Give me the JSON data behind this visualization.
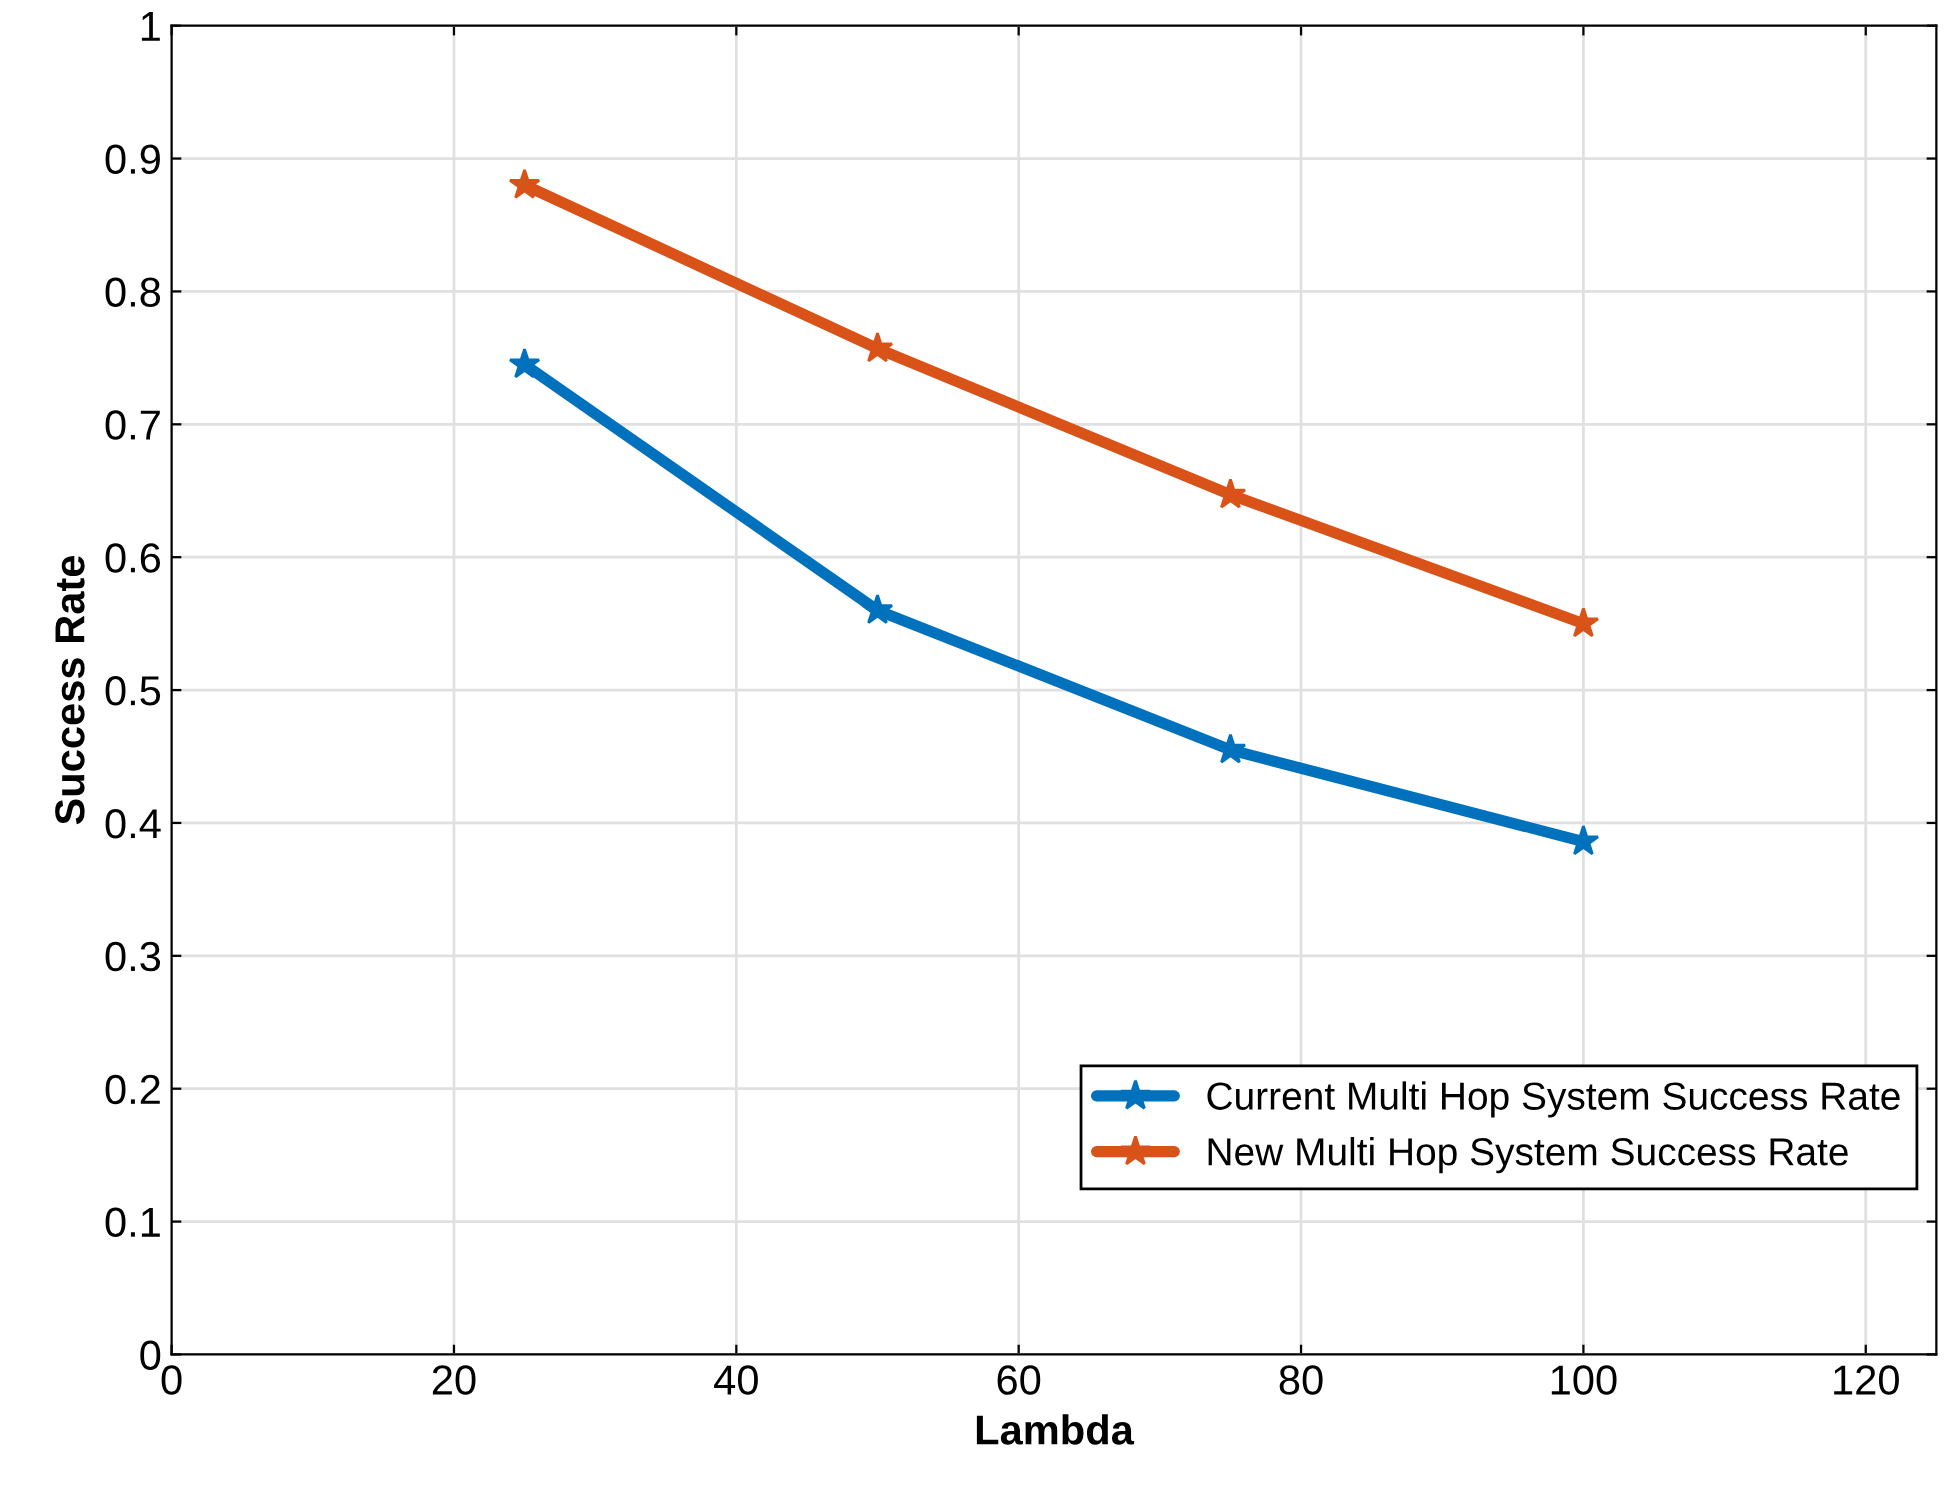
{
  "chart_data": {
    "type": "line",
    "xlabel": "Lambda",
    "ylabel": "Success Rate",
    "x": [
      25,
      50,
      75,
      100
    ],
    "series": [
      {
        "name": "Current Multi Hop System Success Rate",
        "color": "#0072bd",
        "values": [
          0.745,
          0.56,
          0.455,
          0.386
        ]
      },
      {
        "name": "New Multi Hop System Success Rate",
        "color": "#d95319",
        "values": [
          0.88,
          0.757,
          0.647,
          0.55
        ]
      }
    ],
    "xlim": [
      0,
      125
    ],
    "xticks": [
      0,
      20,
      40,
      60,
      80,
      100,
      120
    ],
    "ylim": [
      0,
      1
    ],
    "yticks": [
      0,
      0.1,
      0.2,
      0.3,
      0.4,
      0.5,
      0.6,
      0.7,
      0.8,
      0.9,
      1
    ],
    "grid": true,
    "legend": "bottom right",
    "marker": "star",
    "line_style": "solid"
  }
}
